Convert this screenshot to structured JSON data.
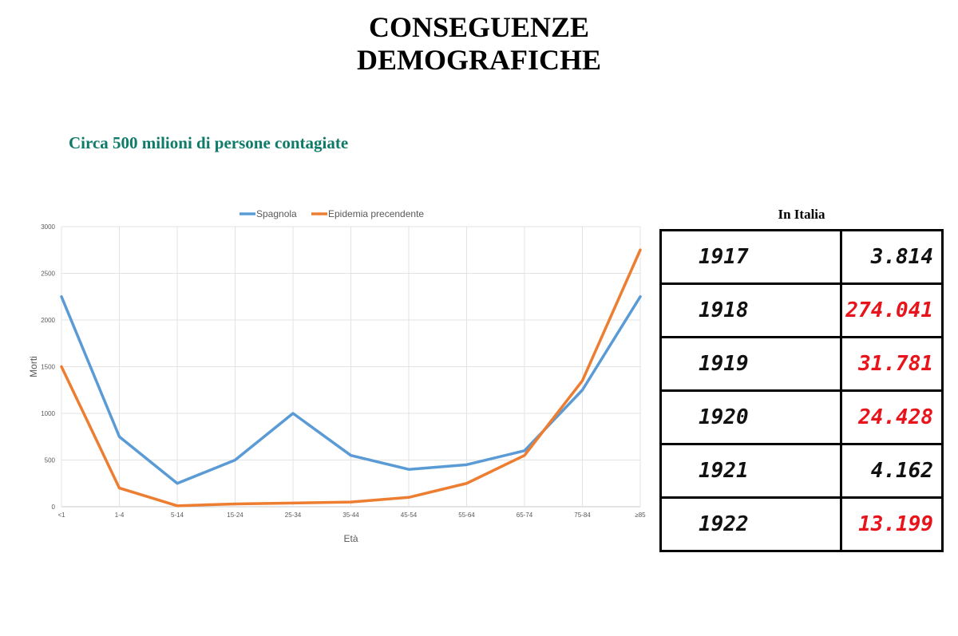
{
  "title": {
    "line1": "CONSEGUENZE",
    "line2": "DEMOGRAFICHE"
  },
  "subtitle": "Circa 500 milioni di persone contagiate",
  "table": {
    "caption": "In Italia",
    "rows": [
      {
        "year": "1917",
        "value": "3.814",
        "highlight": false
      },
      {
        "year": "1918",
        "value": "274.041",
        "highlight": true
      },
      {
        "year": "1919",
        "value": "31.781",
        "highlight": true
      },
      {
        "year": "1920",
        "value": "24.428",
        "highlight": true
      },
      {
        "year": "1921",
        "value": "4.162",
        "highlight": false
      },
      {
        "year": "1922",
        "value": "13.199",
        "highlight": true
      }
    ],
    "highlight_color": "#e8141c"
  },
  "chart_data": {
    "type": "line",
    "xlabel": "Età",
    "ylabel": "Morti",
    "categories": [
      "<1",
      "1-4",
      "5-14",
      "15-24",
      "25-34",
      "35-44",
      "45-54",
      "55-64",
      "65-74",
      "75-84",
      "≥85"
    ],
    "ylim": [
      0,
      3000
    ],
    "yticks": [
      0,
      500,
      1000,
      1500,
      2000,
      2500,
      3000
    ],
    "grid": true,
    "legend": "top-center",
    "series": [
      {
        "name": "Spagnola",
        "color": "#5b9bd5",
        "values": [
          2250,
          750,
          250,
          500,
          1000,
          550,
          400,
          450,
          600,
          1250,
          2250
        ]
      },
      {
        "name": "Epidemia precendente",
        "color": "#ed7d31",
        "values": [
          1500,
          200,
          10,
          30,
          40,
          50,
          100,
          250,
          550,
          1350,
          2750
        ]
      }
    ]
  }
}
